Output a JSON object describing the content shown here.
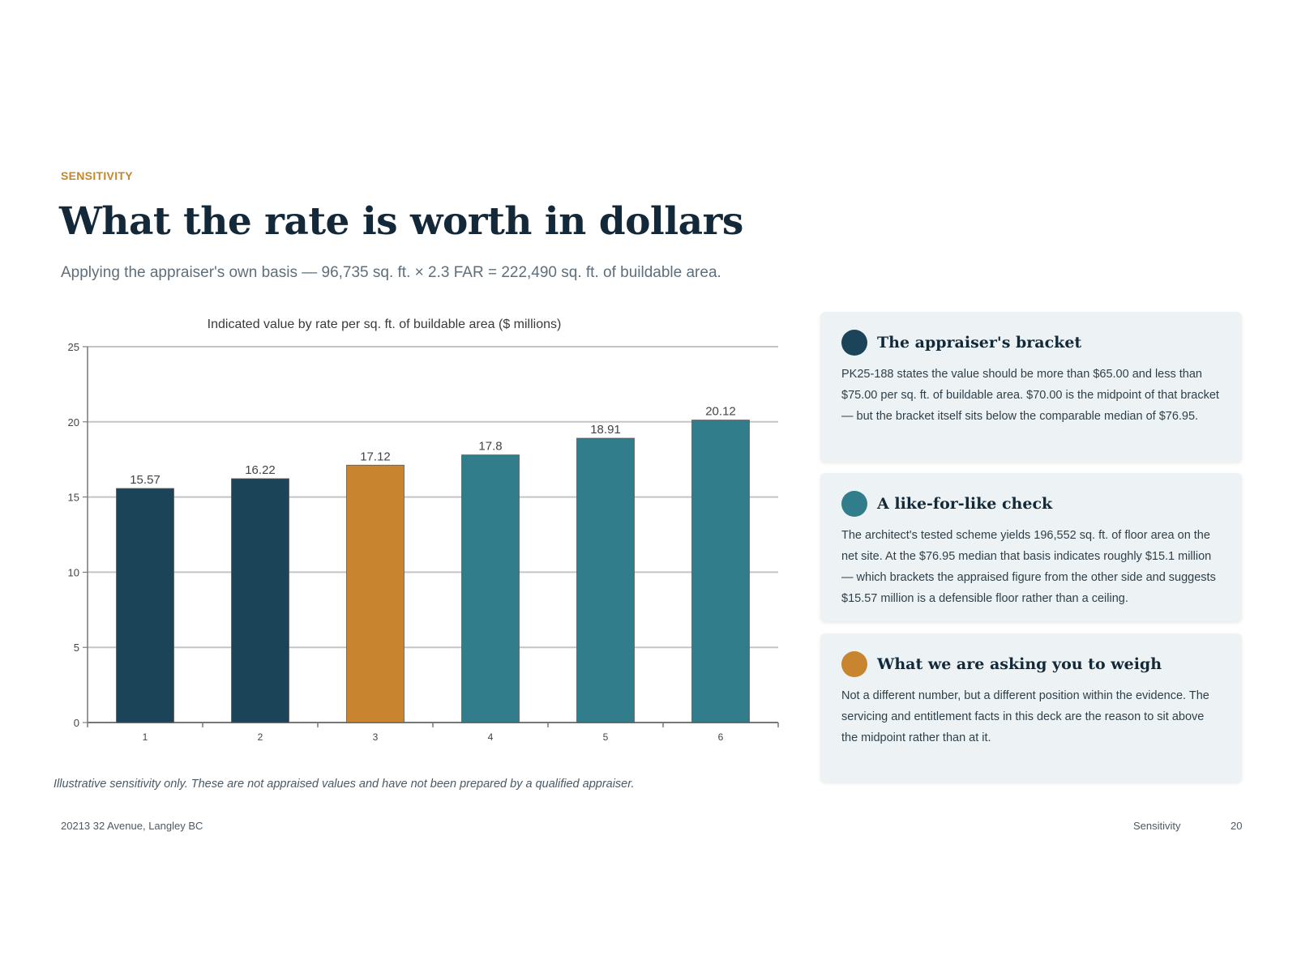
{
  "slide": {
    "eyebrow": "SENSITIVITY",
    "title": "What the rate is worth in dollars",
    "subtitle": "Applying the appraiser's own basis — 96,735 sq. ft. × 2.3 FAR = 222,490 sq. ft. of buildable area.",
    "disclaimer": "Illustrative sensitivity only. These are not appraised values and have not been prepared by a qualified appraiser."
  },
  "chart_data": {
    "type": "bar",
    "title": "Indicated value by rate per sq. ft. of buildable area ($ millions)",
    "categories": [
      "1",
      "2",
      "3",
      "4",
      "5",
      "6"
    ],
    "values": [
      15.57,
      16.22,
      17.12,
      17.8,
      18.91,
      20.12
    ],
    "value_labels": [
      "15.57",
      "16.22",
      "17.12",
      "17.8",
      "18.91",
      "20.12"
    ],
    "bar_colors": [
      "#1b4459",
      "#1b4459",
      "#c8842f",
      "#317d8c",
      "#317d8c",
      "#317d8c"
    ],
    "xlabel": "",
    "ylabel": "",
    "ylim": [
      0,
      25
    ],
    "yticks": [
      0,
      5,
      10,
      15,
      20,
      25
    ],
    "grid": true,
    "legend": "none"
  },
  "cards": [
    {
      "title": "The appraiser's bracket",
      "dot_color": "#1b4459",
      "body": "PK25-188 states the value should be more than $65.00 and less than $75.00 per sq. ft. of buildable area. $70.00 is the midpoint of that bracket — but the bracket itself sits below the comparable median of $76.95."
    },
    {
      "title": "A like-for-like check",
      "dot_color": "#317d8c",
      "body": "The architect's tested scheme yields 196,552 sq. ft. of floor area on the net site. At the $76.95 median that basis indicates roughly $15.1 million — which brackets the appraised figure from the other side and suggests $15.57 million is a defensible floor rather than a ceiling."
    },
    {
      "title": "What we are asking you to weigh",
      "dot_color": "#c8842f",
      "body": "Not a different number, but a different position within the evidence. The servicing and entitlement facts in this deck are the reason to sit above the midpoint rather than at it."
    }
  ],
  "footer": {
    "address": "20213 32 Avenue, Langley BC",
    "section": "Sensitivity",
    "page": "20"
  }
}
